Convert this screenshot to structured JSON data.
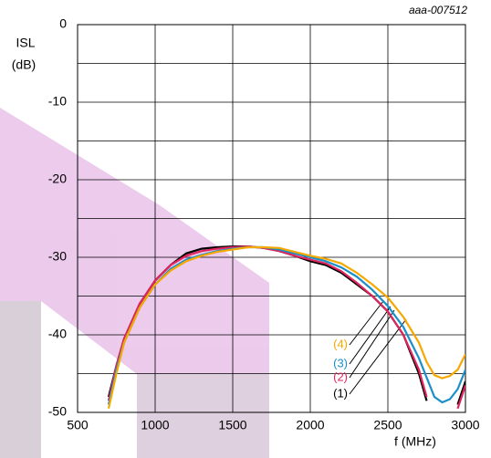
{
  "chart_data": {
    "type": "line",
    "y_label_lines": [
      "ISL",
      "(dB)"
    ],
    "x_label": "f (MHz)",
    "figure_id": "aaa-007512",
    "x": [
      650,
      700,
      750,
      800,
      900,
      1000,
      1100,
      1200,
      1300,
      1400,
      1500,
      1600,
      1700,
      1800,
      1900,
      2000,
      2100,
      2200,
      2300,
      2400,
      2500,
      2600,
      2700,
      2750,
      2800,
      2850,
      2900,
      2950,
      3000
    ],
    "series": [
      {
        "name": "(1)",
        "color": "#000000",
        "values": [
          null,
          -48,
          -44,
          -40.5,
          -36,
          -33,
          -31,
          -29.5,
          -28.9,
          -28.7,
          -28.6,
          -28.6,
          -28.8,
          -29.2,
          -29.8,
          -30.5,
          -31,
          -32,
          -33.5,
          -35,
          -37,
          -40,
          -45,
          -48.5,
          null,
          null,
          null,
          -49,
          -46
        ]
      },
      {
        "name": "(2)",
        "color": "#e0245e",
        "values": [
          null,
          -48.5,
          -44,
          -40.5,
          -36,
          -33,
          -31,
          -29.8,
          -29.2,
          -28.9,
          -28.7,
          -28.6,
          -28.8,
          -29.2,
          -29.8,
          -30.3,
          -30.8,
          -31.8,
          -33.3,
          -35,
          -37,
          -40,
          -44.5,
          -48,
          null,
          null,
          null,
          -49.5,
          -46.5
        ]
      },
      {
        "name": "(3)",
        "color": "#1b8fc8",
        "values": [
          null,
          -49,
          -44.5,
          -41,
          -36.5,
          -33.5,
          -31.5,
          -30.3,
          -29.7,
          -29.2,
          -28.9,
          -28.7,
          -28.7,
          -29,
          -29.5,
          -30,
          -30.5,
          -31.3,
          -32.5,
          -34.2,
          -36.3,
          -39,
          -43,
          -45.5,
          -48,
          -48.7,
          -48.3,
          -47,
          -44.5
        ]
      },
      {
        "name": "(4)",
        "color": "#f5a800",
        "values": [
          null,
          -49.5,
          -45,
          -41,
          -36.5,
          -33.5,
          -31.7,
          -30.5,
          -29.8,
          -29.3,
          -29,
          -28.7,
          -28.7,
          -28.8,
          -29.3,
          -29.8,
          -30.2,
          -30.8,
          -32,
          -33.5,
          -35.2,
          -37.7,
          -41,
          -43.5,
          -45.2,
          -45.6,
          -45.3,
          -44.5,
          -42.5
        ]
      }
    ],
    "xlim": [
      500,
      3000
    ],
    "xticks": [
      500,
      1000,
      1500,
      2000,
      2500,
      3000
    ],
    "ylim": [
      -50,
      0
    ],
    "yticks": [
      0,
      -10,
      -20,
      -30,
      -40,
      -50
    ],
    "y_minor_grid": [
      -5,
      -15,
      -25,
      -35,
      -45
    ],
    "grid": true
  }
}
